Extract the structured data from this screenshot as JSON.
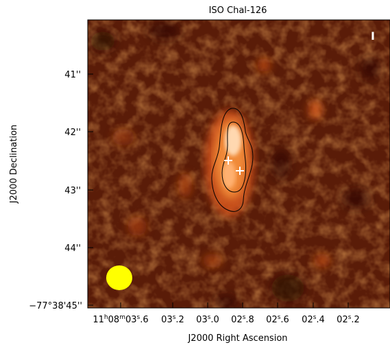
{
  "title": "ISO Chal-126",
  "stokes_label": "I",
  "xlabel": "J2000 Right Ascension",
  "ylabel": "J2000 Declination",
  "x_ticks": [
    {
      "main": "11",
      "sup1": "h",
      "mid": "08",
      "sup2": "m",
      "tail": "03",
      "sup3": "s",
      "frac": ".6"
    },
    {
      "main": "",
      "sup1": "",
      "mid": "",
      "sup2": "",
      "tail": "03",
      "sup3": "s",
      "frac": ".2"
    },
    {
      "main": "",
      "sup1": "",
      "mid": "",
      "sup2": "",
      "tail": "03",
      "sup3": "s",
      "frac": ".0"
    },
    {
      "main": "",
      "sup1": "",
      "mid": "",
      "sup2": "",
      "tail": "02",
      "sup3": "s",
      "frac": ".8"
    },
    {
      "main": "",
      "sup1": "",
      "mid": "",
      "sup2": "",
      "tail": "02",
      "sup3": "s",
      "frac": ".6"
    },
    {
      "main": "",
      "sup1": "",
      "mid": "",
      "sup2": "",
      "tail": "02",
      "sup3": "s",
      "frac": ".4"
    },
    {
      "main": "",
      "sup1": "",
      "mid": "",
      "sup2": "",
      "tail": "02",
      "sup3": "s",
      "frac": ".2"
    }
  ],
  "y_ticks": [
    "41''",
    "42''",
    "43''",
    "44''",
    "−77°38'45''"
  ],
  "colors": {
    "background": "#ffffff",
    "map_dark": "#3a1005",
    "map_mid": "#8a3a10",
    "source_bright": "#ffe3c2",
    "beam": "#ffff00",
    "contour": "#000000",
    "marker": "#ffffff"
  },
  "overlays": {
    "beam": "yellow beam ellipse",
    "contours": "two black contours",
    "markers": "two white cross markers"
  }
}
